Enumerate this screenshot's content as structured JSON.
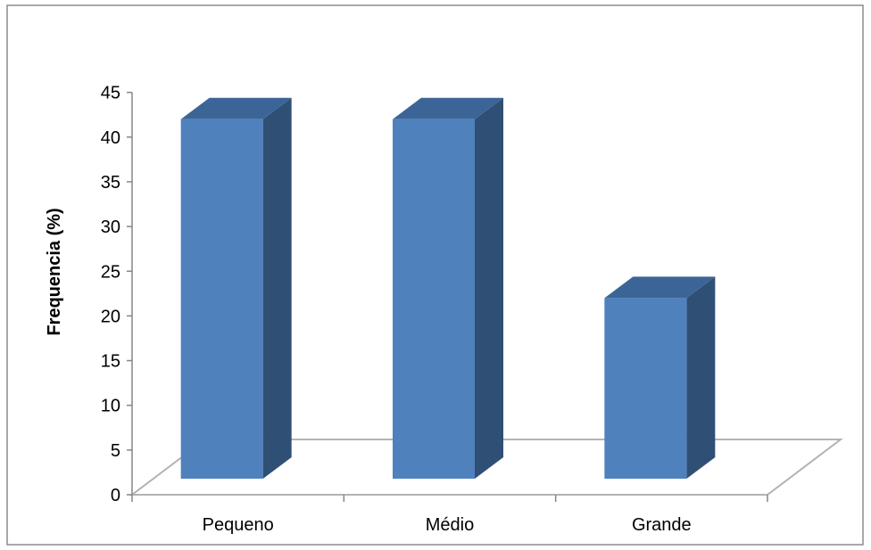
{
  "chart_data": {
    "type": "bar",
    "style": "3d-column",
    "categories": [
      "Pequeno",
      "Médio",
      "Grande"
    ],
    "values": [
      42,
      42,
      22
    ],
    "title": "",
    "xlabel": "",
    "ylabel": "Frequencia (%)",
    "ylim": [
      0,
      45
    ],
    "yticks": [
      "0",
      "5",
      "10",
      "15",
      "20",
      "25",
      "30",
      "35",
      "40",
      "45"
    ],
    "grid": false,
    "legend": "none",
    "colors": {
      "bar_front": "#4f81bd",
      "bar_side": "#2f4f75",
      "bar_top": "#3c6597",
      "floor_line": "#b3b3b3",
      "axis_line": "#868686",
      "frame": "#8c8c8c"
    }
  }
}
